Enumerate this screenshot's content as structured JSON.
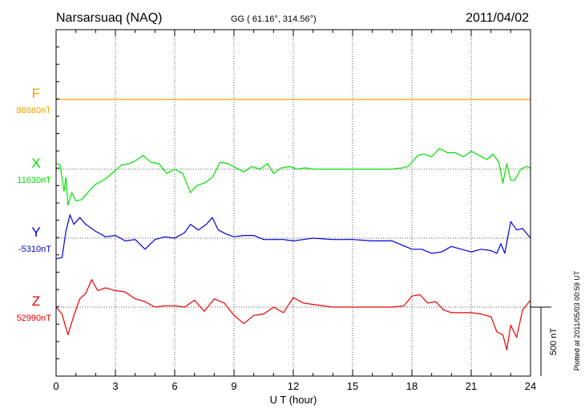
{
  "header": {
    "station": "Narsarsuaq (NAQ)",
    "coords": "GG ( 61.16°, 314.56°)",
    "date": "2011/04/02"
  },
  "side_note": "Plotted at 2011/05/03 00:59 UT",
  "chart_data": {
    "type": "line",
    "xlabel": "U T (hour)",
    "xlim": [
      0,
      24
    ],
    "xticks": [
      0,
      3,
      6,
      9,
      12,
      15,
      18,
      21,
      24
    ],
    "x_tick_labels": [
      "0",
      "3",
      "6",
      "9",
      "12",
      "15",
      "18",
      "21",
      "24"
    ],
    "scale_bar": {
      "value_nT": 500,
      "label": "500 nT"
    },
    "grid": true,
    "series": [
      {
        "name": "F",
        "baseline_label": "88880nT",
        "baseline_nT": 88880,
        "color": "#f0a000",
        "x": [
          0,
          24
        ],
        "dev_nT": [
          0,
          0
        ]
      },
      {
        "name": "X",
        "baseline_label": "11630nT",
        "baseline_nT": 11630,
        "color": "#00e000",
        "x": [
          0,
          0.2,
          0.4,
          0.5,
          0.6,
          0.8,
          1.0,
          1.3,
          1.6,
          2.0,
          2.5,
          3.0,
          3.3,
          3.7,
          4.0,
          4.4,
          4.8,
          5.2,
          5.6,
          6.0,
          6.4,
          6.8,
          7.1,
          7.5,
          7.9,
          8.3,
          8.7,
          9.1,
          9.5,
          9.9,
          10.3,
          10.7,
          11.0,
          11.4,
          11.8,
          12.2,
          12.6,
          13.0,
          13.5,
          14.0,
          14.5,
          15.0,
          15.5,
          16.0,
          16.5,
          17.0,
          17.5,
          17.8,
          18.0,
          18.3,
          18.6,
          19.0,
          19.4,
          19.8,
          20.2,
          20.6,
          21.0,
          21.4,
          21.8,
          22.1,
          22.4,
          22.6,
          22.8,
          23.0,
          23.2,
          23.5,
          23.8,
          24.0
        ],
        "dev_nT": [
          40,
          30,
          -160,
          -60,
          -260,
          -170,
          -230,
          -220,
          -170,
          -110,
          -70,
          -10,
          30,
          40,
          60,
          100,
          50,
          40,
          -30,
          0,
          -30,
          -170,
          -120,
          -100,
          -60,
          50,
          40,
          10,
          -20,
          20,
          0,
          40,
          -30,
          10,
          20,
          0,
          10,
          0,
          0,
          0,
          0,
          0,
          0,
          0,
          0,
          0,
          10,
          20,
          50,
          100,
          110,
          90,
          150,
          120,
          120,
          90,
          130,
          100,
          70,
          110,
          50,
          -100,
          40,
          -80,
          -80,
          0,
          20,
          10
        ]
      },
      {
        "name": "Y",
        "baseline_label": "-5310nT",
        "baseline_nT": -5310,
        "color": "#0000dd",
        "x": [
          0,
          0.3,
          0.5,
          0.7,
          0.9,
          1.2,
          1.5,
          2.0,
          2.5,
          3.0,
          3.5,
          4.0,
          4.5,
          5.0,
          5.5,
          6.0,
          6.5,
          6.8,
          7.2,
          7.6,
          7.9,
          8.2,
          8.6,
          9.0,
          9.5,
          10.0,
          10.5,
          11.0,
          11.5,
          12.0,
          12.5,
          13.0,
          14.0,
          15.0,
          16.0,
          17.0,
          18.0,
          18.5,
          19.0,
          19.5,
          20.0,
          20.5,
          21.0,
          21.5,
          22.0,
          22.3,
          22.5,
          22.7,
          23.0,
          23.3,
          23.6,
          24.0
        ],
        "dev_nT": [
          -150,
          -140,
          50,
          170,
          100,
          150,
          100,
          50,
          10,
          20,
          -20,
          -10,
          -80,
          -10,
          10,
          0,
          40,
          100,
          60,
          100,
          150,
          60,
          30,
          10,
          20,
          20,
          -10,
          -10,
          -10,
          -20,
          -10,
          0,
          -10,
          -10,
          -20,
          -20,
          -80,
          -80,
          -110,
          -100,
          -60,
          -80,
          -100,
          -80,
          -90,
          -110,
          -40,
          -110,
          120,
          60,
          70,
          0
        ]
      },
      {
        "name": "Z",
        "baseline_label": "52990nT",
        "baseline_nT": 52990,
        "color": "#ee0000",
        "x": [
          0,
          0.3,
          0.6,
          0.9,
          1.2,
          1.5,
          1.8,
          2.1,
          2.5,
          3.0,
          3.5,
          4.0,
          4.5,
          5.0,
          5.5,
          6.0,
          6.5,
          7.0,
          7.5,
          8.0,
          8.5,
          9.0,
          9.5,
          10.0,
          10.5,
          11.0,
          11.5,
          12.0,
          12.5,
          13.0,
          14.0,
          15.0,
          16.0,
          17.0,
          17.6,
          18.0,
          18.4,
          18.8,
          19.2,
          19.6,
          20.0,
          20.5,
          21.0,
          21.5,
          22.0,
          22.3,
          22.6,
          22.8,
          23.0,
          23.3,
          23.6,
          24.0
        ],
        "dev_nT": [
          0,
          -50,
          -200,
          -60,
          60,
          100,
          200,
          120,
          140,
          120,
          110,
          60,
          40,
          0,
          10,
          10,
          0,
          50,
          -30,
          60,
          30,
          -60,
          -120,
          -60,
          -50,
          0,
          -40,
          70,
          30,
          20,
          0,
          0,
          0,
          0,
          10,
          80,
          90,
          30,
          40,
          -20,
          -40,
          -40,
          -40,
          -50,
          -70,
          -180,
          -200,
          -310,
          -130,
          -220,
          -20,
          50
        ]
      }
    ]
  }
}
